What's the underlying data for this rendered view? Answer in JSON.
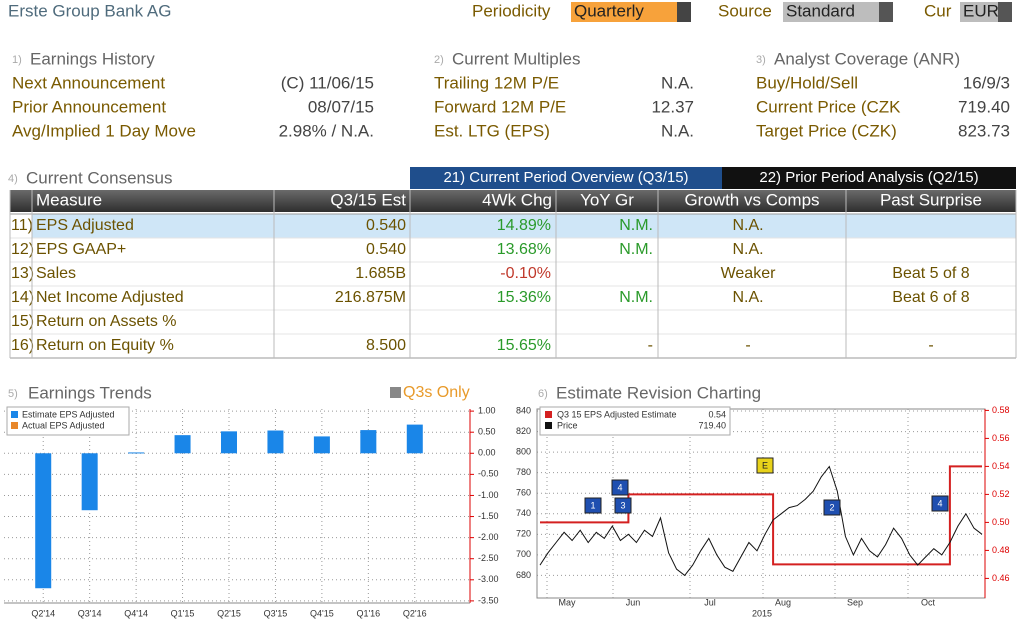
{
  "header": {
    "company": "Erste Group Bank AG",
    "periodicity_label": "Periodicity",
    "periodicity": "Quarterly",
    "source_label": "Source",
    "source": "Standard",
    "cur_label": "Cur",
    "cur": "EUR"
  },
  "sections": [
    {
      "num": "1)",
      "title": "Earnings History",
      "rows": [
        [
          "Next Announcement",
          "(C)  11/06/15"
        ],
        [
          "Prior Announcement",
          "08/07/15"
        ],
        [
          "Avg/Implied 1 Day Move",
          "2.98% / N.A."
        ]
      ]
    },
    {
      "num": "2)",
      "title": "Current Multiples",
      "rows": [
        [
          "Trailing 12M P/E",
          "N.A."
        ],
        [
          "Forward 12M P/E",
          "12.37"
        ],
        [
          "Est. LTG (EPS)",
          "N.A."
        ]
      ]
    },
    {
      "num": "3)",
      "title": "Analyst Coverage (ANR)",
      "rows": [
        [
          "Buy/Hold/Sell",
          "16/9/3"
        ],
        [
          "Current Price (CZK",
          "719.40"
        ],
        [
          "Target Price (CZK)",
          "823.73"
        ]
      ]
    }
  ],
  "consensus": {
    "num": "4)",
    "title": "Current Consensus",
    "tab_active": "21) Current Period Overview (Q3/15)",
    "tab_other": "22) Prior Period Analysis (Q2/15)"
  },
  "table": {
    "columns": [
      "Measure",
      "Q3/15 Est",
      "4Wk Chg",
      "YoY Gr",
      "Growth vs Comps",
      "Past Surprise"
    ],
    "rows": [
      [
        "11)",
        "EPS Adjusted",
        "0.540",
        "14.89%",
        "N.M.",
        "N.A.",
        null
      ],
      [
        "12)",
        "EPS GAAP+",
        "0.540",
        "13.68%",
        "N.M.",
        "N.A.",
        null
      ],
      [
        "13)",
        "Sales",
        "1.685B",
        "-0.10%",
        null,
        "Weaker",
        "Beat 5 of 8"
      ],
      [
        "14)",
        "Net Income Adjusted",
        "216.875M",
        "15.36%",
        "N.M.",
        "N.A.",
        "Beat 6 of 8"
      ],
      [
        "15)",
        "Return on Assets %",
        null,
        null,
        null,
        null,
        null
      ],
      [
        "16)",
        "Return on Equity %",
        "8.500",
        "15.65%",
        "-",
        "-",
        "-"
      ]
    ]
  },
  "chart_data": [
    {
      "type": "bar",
      "num": "5)",
      "title": "Earnings Trends",
      "toggle": "Q3s Only",
      "categories": [
        "Q2'14",
        "Q3'14",
        "Q4'14",
        "Q1'15",
        "Q2'15",
        "Q3'15",
        "Q4'15",
        "Q1'16",
        "Q2'16"
      ],
      "series": [
        {
          "name": "Estimate EPS Adjusted",
          "color": "#1a86e8",
          "values": [
            -3.2,
            -1.35,
            0.02,
            0.43,
            0.52,
            0.54,
            0.4,
            0.55,
            0.68
          ]
        },
        {
          "name": "Actual EPS Adjusted",
          "color": "#e8872a",
          "values": [
            null,
            null,
            null,
            null,
            null,
            null,
            null,
            null,
            null
          ]
        }
      ],
      "ylim": [
        -3.55,
        1.05
      ],
      "yticks": [
        {
          "value": 1,
          "label": "1.00"
        },
        {
          "value": 0.5,
          "label": "0.50"
        },
        {
          "value": 0,
          "label": "0.00"
        },
        {
          "value": -0.5,
          "label": "-0.50"
        },
        {
          "value": -1,
          "label": "-1.00"
        },
        {
          "value": -1.5,
          "label": "-1.50"
        },
        {
          "value": -2,
          "label": "-2.00"
        },
        {
          "value": -2.5,
          "label": "-2.50"
        },
        {
          "value": -3,
          "label": "-3.00"
        },
        {
          "value": -3.5,
          "label": "-3.50"
        }
      ],
      "grid": true,
      "legend": "top-left"
    },
    {
      "type": "line",
      "num": "6)",
      "title": "Estimate Revision Charting",
      "xlabels": [
        "May",
        "Jun",
        "Jul",
        "Aug",
        "Sep",
        "Oct"
      ],
      "year": "2015",
      "series": [
        {
          "name": "Q3 15 EPS Adjusted Estimate",
          "legend_value": "0.54",
          "color": "#d42020",
          "axis": "y2",
          "values": [
            0.5,
            0.5,
            0.5,
            0.5,
            0.5,
            0.5,
            0.5,
            0.5,
            0.5,
            0.5,
            0.5,
            0.52,
            0.52,
            0.52,
            0.52,
            0.52,
            0.52,
            0.52,
            0.52,
            0.52,
            0.52,
            0.52,
            0.52,
            0.52,
            0.52,
            0.52,
            0.52,
            0.52,
            0.52,
            0.47,
            0.47,
            0.47,
            0.47,
            0.47,
            0.47,
            0.47,
            0.47,
            0.47,
            0.47,
            0.47,
            0.47,
            0.47,
            0.47,
            0.47,
            0.47,
            0.47,
            0.47,
            0.47,
            0.47,
            0.47,
            0.47,
            0.54,
            0.54,
            0.54,
            0.54,
            0.54
          ]
        },
        {
          "name": "Price",
          "legend_value": "719.40",
          "color": "#111111",
          "values": [
            690,
            702,
            712,
            722,
            714,
            724,
            712,
            722,
            716,
            728,
            714,
            720,
            712,
            724,
            718,
            736,
            702,
            686,
            680,
            690,
            704,
            716,
            700,
            688,
            684,
            698,
            712,
            704,
            720,
            734,
            740,
            746,
            748,
            754,
            762,
            776,
            786,
            762,
            718,
            700,
            716,
            704,
            698,
            710,
            726,
            716,
            700,
            690,
            698,
            706,
            700,
            712,
            728,
            740,
            726,
            720
          ]
        }
      ],
      "event_markers": [
        "1",
        "4",
        "3",
        "E",
        "2",
        "4"
      ],
      "ylim": [
        658,
        842
      ],
      "yticks": [
        680,
        700,
        720,
        740,
        760,
        780,
        800,
        820,
        840
      ],
      "y2lim": [
        0.446,
        0.581
      ],
      "y2ticks": [
        0.46,
        0.48,
        {
          "value": 0.5,
          "label": "0.50"
        },
        0.52,
        0.54,
        0.56,
        0.58
      ],
      "grid": true,
      "legend": "top-left"
    }
  ]
}
